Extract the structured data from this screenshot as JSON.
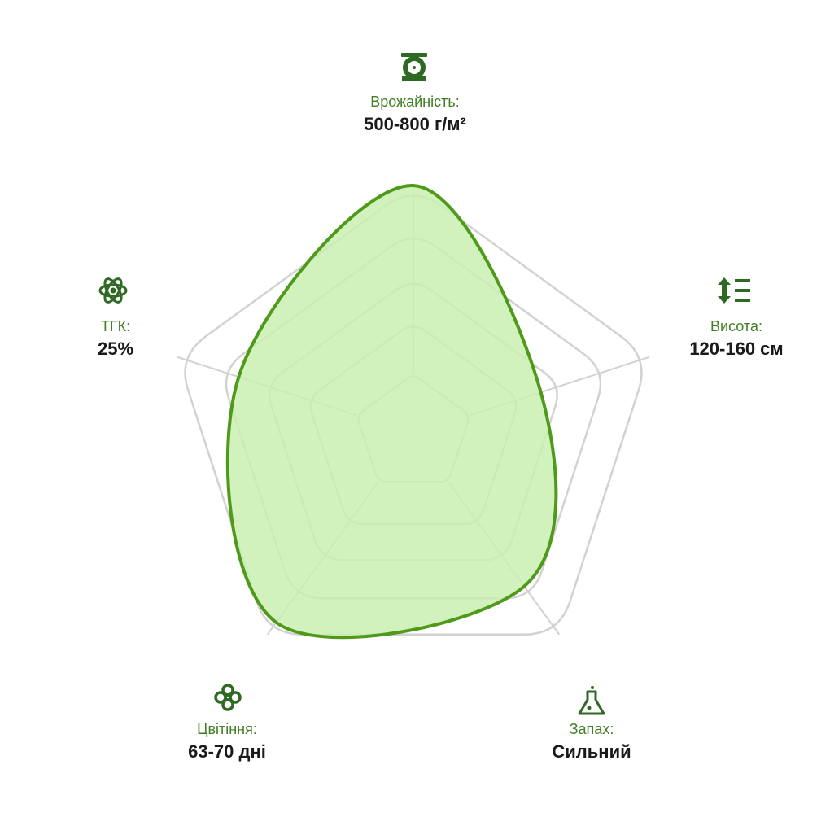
{
  "chart_data": {
    "type": "radar",
    "categories": [
      "Врожайність:",
      "Висота:",
      "Запах:",
      "Цвітіння:",
      "ТГК:"
    ],
    "category_details": [
      "500-800 г/м²",
      "120-160 см",
      "Сильний",
      "63-70 дні",
      "25%"
    ],
    "rlim": [
      0,
      5
    ],
    "series": [
      {
        "color": "#4f9a1a",
        "fill": "#c9efb1",
        "values": [
          5,
          2.7,
          3.8,
          4.7,
          3.7
        ]
      }
    ]
  }
}
